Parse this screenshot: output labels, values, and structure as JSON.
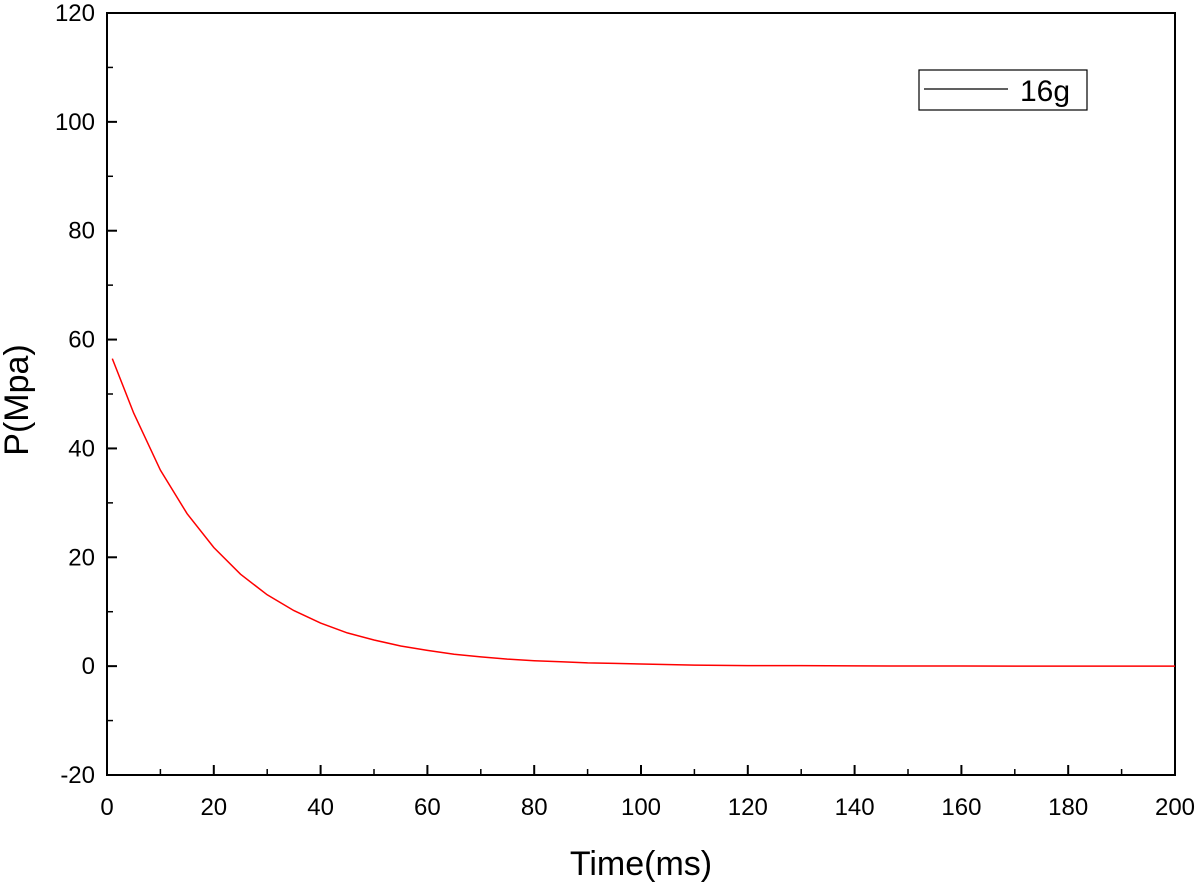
{
  "chart_data": {
    "type": "line",
    "title": "",
    "xlabel": "Time(ms)",
    "ylabel": "P(Mpa)",
    "xlim": [
      0,
      200
    ],
    "ylim": [
      -20,
      120
    ],
    "x_ticks": [
      0,
      20,
      40,
      60,
      80,
      100,
      120,
      140,
      160,
      180,
      200
    ],
    "y_ticks": [
      -20,
      0,
      20,
      40,
      60,
      80,
      100,
      120
    ],
    "x_ticks_text": [
      "0",
      "20",
      "40",
      "60",
      "80",
      "100",
      "120",
      "140",
      "160",
      "180",
      "200"
    ],
    "y_ticks_text": [
      "-20",
      "0",
      "20",
      "40",
      "60",
      "80",
      "100",
      "120"
    ],
    "grid": false,
    "legend_position": "top-right",
    "legend_line_color": "#000000",
    "series": [
      {
        "name": "16g",
        "color": "#ff0000",
        "x": [
          1,
          5,
          10,
          15,
          20,
          25,
          30,
          35,
          40,
          45,
          50,
          55,
          60,
          65,
          70,
          75,
          80,
          85,
          90,
          95,
          100,
          110,
          120,
          130,
          140,
          150,
          160,
          170,
          180,
          190,
          200
        ],
        "y": [
          56.5,
          46.5,
          36.0,
          28.0,
          21.8,
          16.9,
          13.1,
          10.2,
          7.9,
          6.1,
          4.8,
          3.7,
          2.9,
          2.2,
          1.7,
          1.3,
          1.0,
          0.8,
          0.6,
          0.5,
          0.4,
          0.2,
          0.1,
          0.1,
          0.05,
          0.03,
          0.02,
          0.01,
          0.01,
          0.0,
          0.0
        ]
      }
    ]
  }
}
